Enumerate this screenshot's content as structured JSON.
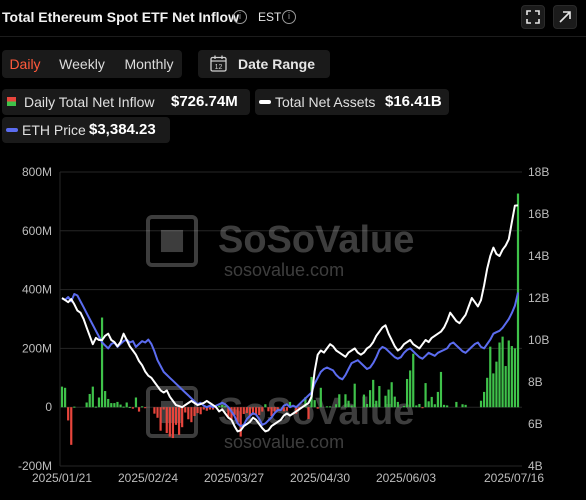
{
  "header": {
    "title": "Total Ethereum Spot ETF Net Inflow",
    "timezone": "EST"
  },
  "tabs": [
    {
      "label": "Daily",
      "active": true
    },
    {
      "label": "Weekly",
      "active": false
    },
    {
      "label": "Monthly",
      "active": false
    }
  ],
  "date_range": {
    "label": "Date Range",
    "icon_text": "12"
  },
  "legend": [
    {
      "name": "Daily Total Net Inflow",
      "value": "$726.74M",
      "icon": "bar-swatch-icon"
    },
    {
      "name": "Total Net Assets",
      "value": "$16.41B",
      "icon": "white-line-icon"
    },
    {
      "name": "ETH Price",
      "value": "$3,384.23",
      "icon": "blue-line-icon"
    }
  ],
  "watermark": {
    "brand": "SoSoValue",
    "url": "sosovalue.com"
  },
  "colors": {
    "inflow_positive": "#3fc24a",
    "inflow_negative": "#e8453c",
    "net_assets_line": "#ffffff",
    "eth_price_line": "#5b6cf0",
    "active_tab": "#ff5a3c"
  },
  "chart_data": {
    "type": "bar",
    "x_tick_labels": [
      "2025/01/21",
      "2025/02/24",
      "2025/03/27",
      "2025/04/30",
      "2025/06/03",
      "2025/07/16"
    ],
    "left_axis": {
      "ticks": [
        "800M",
        "600M",
        "400M",
        "200M",
        "0",
        "-200M"
      ],
      "range": [
        -200,
        800
      ],
      "unit": "M USD"
    },
    "right_axis": {
      "ticks": [
        "18B",
        "16B",
        "14B",
        "12B",
        "10B",
        "8B",
        "6B",
        "4B"
      ],
      "range": [
        4,
        18
      ],
      "unit": "B USD"
    },
    "grid": true,
    "series": [
      {
        "name": "Daily Total Net Inflow",
        "type": "bar",
        "values": [
          70,
          66,
          -45,
          -128,
          2,
          0,
          0,
          0,
          16,
          45,
          70,
          2,
          33,
          305,
          55,
          28,
          14,
          14,
          18,
          9,
          2,
          16,
          1,
          -5,
          33,
          -15,
          3,
          -2,
          0,
          0,
          -22,
          -36,
          -80,
          -8,
          -88,
          -100,
          -105,
          -60,
          -94,
          -68,
          -18,
          -41,
          -51,
          -30,
          -20,
          -24,
          -8,
          -12,
          -8,
          -8,
          -2,
          5,
          8,
          4,
          -36,
          -40,
          -26,
          -56,
          -100,
          -23,
          -20,
          -29,
          -26,
          -25,
          -27,
          -15,
          10,
          -14,
          -30,
          -15,
          -8,
          0,
          -14,
          -12,
          18,
          0,
          -22,
          -8,
          0,
          34,
          -40,
          103,
          24,
          -5,
          66,
          0,
          3,
          3,
          0,
          10,
          44,
          0,
          44,
          22,
          6,
          80,
          0,
          0,
          43,
          11,
          58,
          93,
          22,
          72,
          0,
          39,
          60,
          85,
          36,
          18,
          0,
          4,
          96,
          125,
          182,
          6,
          11,
          -3,
          82,
          20,
          35,
          10,
          52,
          120,
          8,
          6,
          0,
          0,
          18,
          0,
          10,
          8,
          0,
          0,
          0,
          0,
          22,
          52,
          100,
          206,
          115,
          155,
          220,
          240,
          140,
          227,
          208,
          200,
          726.74
        ]
      },
      {
        "name": "Total Net Assets",
        "type": "line",
        "axis": "right",
        "values": [
          12.0,
          11.9,
          11.8,
          11.95,
          11.7,
          11.4,
          11.3,
          11.0,
          10.6,
          10.2,
          9.8,
          10.1,
          10.0,
          10.0,
          10.2,
          10.3,
          10.0,
          9.9,
          9.7,
          9.9,
          10.3,
          10.0,
          9.7,
          9.5,
          9.3,
          9.0,
          8.8,
          8.5,
          8.3,
          8.2,
          8.0,
          7.8,
          7.6,
          7.5,
          7.6,
          7.3,
          7.1,
          6.9,
          6.85,
          6.8,
          6.9,
          7.0,
          7.1,
          7.0,
          6.9,
          6.95,
          7.0,
          7.1,
          7.0,
          6.9,
          6.8,
          6.6,
          6.7,
          6.5,
          6.3,
          6.2,
          5.9,
          5.65,
          5.7,
          5.9,
          6.0,
          6.1,
          6.3,
          6.2,
          6.0,
          5.8,
          5.65,
          5.7,
          5.9,
          6.0,
          6.1,
          6.2,
          6.4,
          6.5,
          6.4,
          6.5,
          6.6,
          6.7,
          6.8,
          6.9,
          7.0,
          7.3,
          8.5,
          9.3,
          9.5,
          9.4,
          9.6,
          9.8,
          9.7,
          9.5,
          9.4,
          9.3,
          9.2,
          9.4,
          9.5,
          9.6,
          9.4,
          9.3,
          9.4,
          9.6,
          9.7,
          9.9,
          10.2,
          10.4,
          10.6,
          10.7,
          10.3,
          10.0,
          9.7,
          9.5,
          9.6,
          9.8,
          9.9,
          10.0,
          9.8,
          9.7,
          9.6,
          9.8,
          10.0,
          9.9,
          10.1,
          10.2,
          10.3,
          10.4,
          10.6,
          10.9,
          11.3,
          11.1,
          10.9,
          10.8,
          11.0,
          11.2,
          11.6,
          12.0,
          11.8,
          11.6,
          11.9,
          12.6,
          13.4,
          14.0,
          14.4,
          14.1,
          14.0,
          14.3,
          14.5,
          14.8,
          15.6,
          16.4,
          16.41
        ]
      },
      {
        "name": "ETH Price",
        "type": "line",
        "axis": "left",
        "values": [
          370,
          365,
          375,
          360,
          385,
          380,
          360,
          340,
          320,
          300,
          280,
          260,
          240,
          220,
          210,
          200,
          215,
          220,
          205,
          215,
          225,
          230,
          220,
          225,
          205,
          215,
          225,
          220,
          230,
          215,
          190,
          160,
          140,
          120,
          110,
          100,
          90,
          80,
          70,
          60,
          50,
          40,
          30,
          20,
          10,
          15,
          5,
          0,
          5,
          0,
          5,
          10,
          15,
          10,
          0,
          -15,
          -30,
          -55,
          -65,
          -60,
          -40,
          -30,
          -20,
          -25,
          -40,
          -60,
          -55,
          -45,
          -35,
          -20,
          -10,
          -10,
          5,
          10,
          0,
          5,
          0,
          10,
          20,
          30,
          40,
          50,
          80,
          100,
          120,
          130,
          135,
          130,
          125,
          110,
          100,
          95,
          110,
          130,
          150,
          155,
          160,
          150,
          140,
          130,
          135,
          150,
          170,
          195,
          205,
          200,
          190,
          180,
          170,
          165,
          170,
          185,
          195,
          200,
          190,
          180,
          170,
          165,
          175,
          185,
          180,
          175,
          185,
          190,
          195,
          200,
          215,
          220,
          210,
          200,
          190,
          185,
          195,
          205,
          215,
          220,
          205,
          200,
          215,
          230,
          250,
          255,
          260,
          270,
          285,
          300,
          320,
          345,
          390
        ]
      }
    ]
  }
}
